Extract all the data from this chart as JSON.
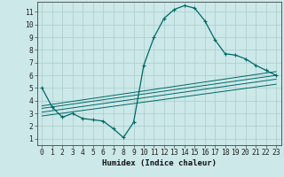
{
  "title": "",
  "xlabel": "Humidex (Indice chaleur)",
  "bg_color": "#cce8e8",
  "line_color": "#006868",
  "grid_color": "#aacccc",
  "xlim": [
    -0.5,
    23.5
  ],
  "ylim": [
    0.5,
    11.8
  ],
  "xticks": [
    0,
    1,
    2,
    3,
    4,
    5,
    6,
    7,
    8,
    9,
    10,
    11,
    12,
    13,
    14,
    15,
    16,
    17,
    18,
    19,
    20,
    21,
    22,
    23
  ],
  "yticks": [
    1,
    2,
    3,
    4,
    5,
    6,
    7,
    8,
    9,
    10,
    11
  ],
  "curve1_x": [
    0,
    1,
    2,
    3,
    4,
    5,
    6,
    7,
    8,
    9,
    10,
    11,
    12,
    13,
    14,
    15,
    16,
    17,
    18,
    19,
    20,
    21,
    22,
    23
  ],
  "curve1_y": [
    5.0,
    3.5,
    2.7,
    3.0,
    2.6,
    2.5,
    2.4,
    1.8,
    1.1,
    2.3,
    6.8,
    9.0,
    10.5,
    11.2,
    11.5,
    11.3,
    10.3,
    8.8,
    7.7,
    7.6,
    7.3,
    6.8,
    6.4,
    6.0
  ],
  "trend_lines": [
    {
      "x": [
        0,
        23
      ],
      "y": [
        3.6,
        6.3
      ]
    },
    {
      "x": [
        0,
        23
      ],
      "y": [
        3.4,
        6.0
      ]
    },
    {
      "x": [
        0,
        23
      ],
      "y": [
        3.1,
        5.7
      ]
    },
    {
      "x": [
        0,
        23
      ],
      "y": [
        2.8,
        5.3
      ]
    }
  ]
}
